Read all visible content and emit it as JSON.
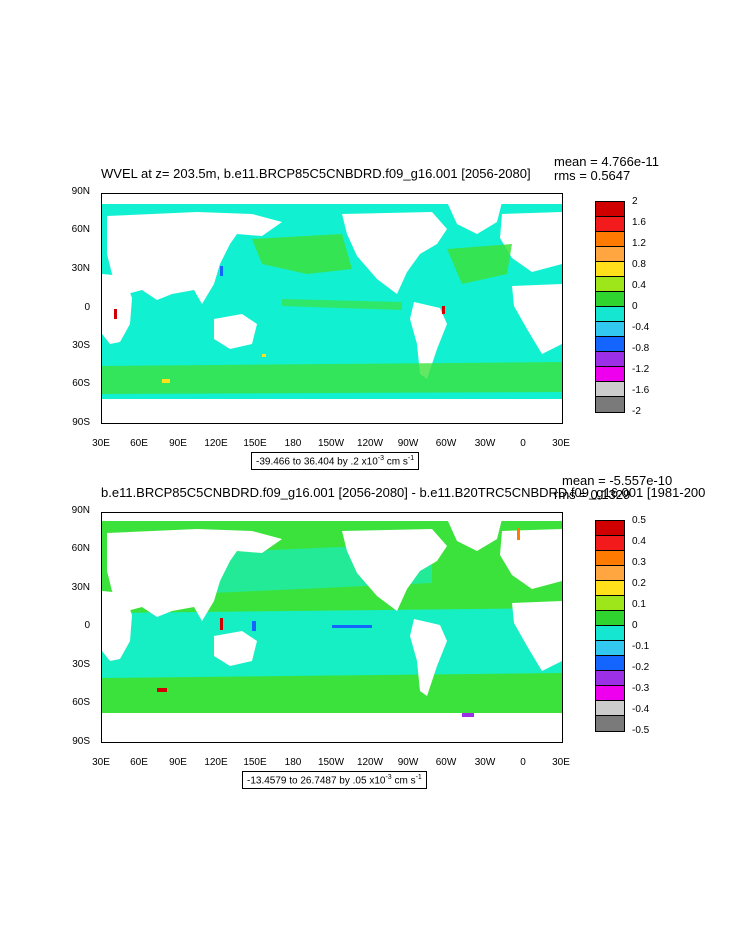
{
  "panels": [
    {
      "title": "WVEL at z= 203.5m, b.e11.BRCP85C5CNBDRD.f09_g16.001 [2056-2080]",
      "mean": "mean = 4.766e-11",
      "rms": "rms = 0.5647",
      "range_prefix": "-39.466 to 36.404 by .2 x10",
      "range_suffix": " cm s",
      "colorbar_labels": [
        "2",
        "1.6",
        "1.2",
        "0.8",
        "0.4",
        "0",
        "-0.4",
        "-0.8",
        "-1.2",
        "-1.6",
        "-2"
      ]
    },
    {
      "title": "b.e11.BRCP85C5CNBDRD.f09_g16.001 [2056-2080] - b.e11.B20TRC5CNBDRD.f09_g16.001 [1981-200",
      "mean": "mean = -5.557e-10",
      "rms": "rms = 0.1329",
      "range_prefix": "-13.4579 to 26.7487 by .05 x10",
      "range_suffix": " cm s",
      "colorbar_labels": [
        "0.5",
        "0.4",
        "0.3",
        "0.2",
        "0.1",
        "0",
        "-0.1",
        "-0.2",
        "-0.3",
        "-0.4",
        "-0.5"
      ]
    }
  ],
  "lat_labels": [
    "90N",
    "60N",
    "30N",
    "0",
    "30S",
    "60S",
    "90S"
  ],
  "lon_labels": [
    "30E",
    "60E",
    "90E",
    "120E",
    "150E",
    "180",
    "150W",
    "120W",
    "90W",
    "60W",
    "30W",
    "0",
    "30E"
  ],
  "range_exponent": "-3",
  "range_unit_exponent": "-1",
  "colors": {
    "ocean_main": "#12f0d2",
    "ocean_green": "#3ce23c",
    "land": "#ffffff",
    "colorbar": [
      "#d00000",
      "#f21a1a",
      "#ff7a00",
      "#ffa640",
      "#ffe01a",
      "#9ee61a",
      "#2fd42f",
      "#14e6d2",
      "#32c8f0",
      "#1464ff",
      "#9b30e6",
      "#ee00ee",
      "#cccccc",
      "#7a7a7a"
    ]
  }
}
